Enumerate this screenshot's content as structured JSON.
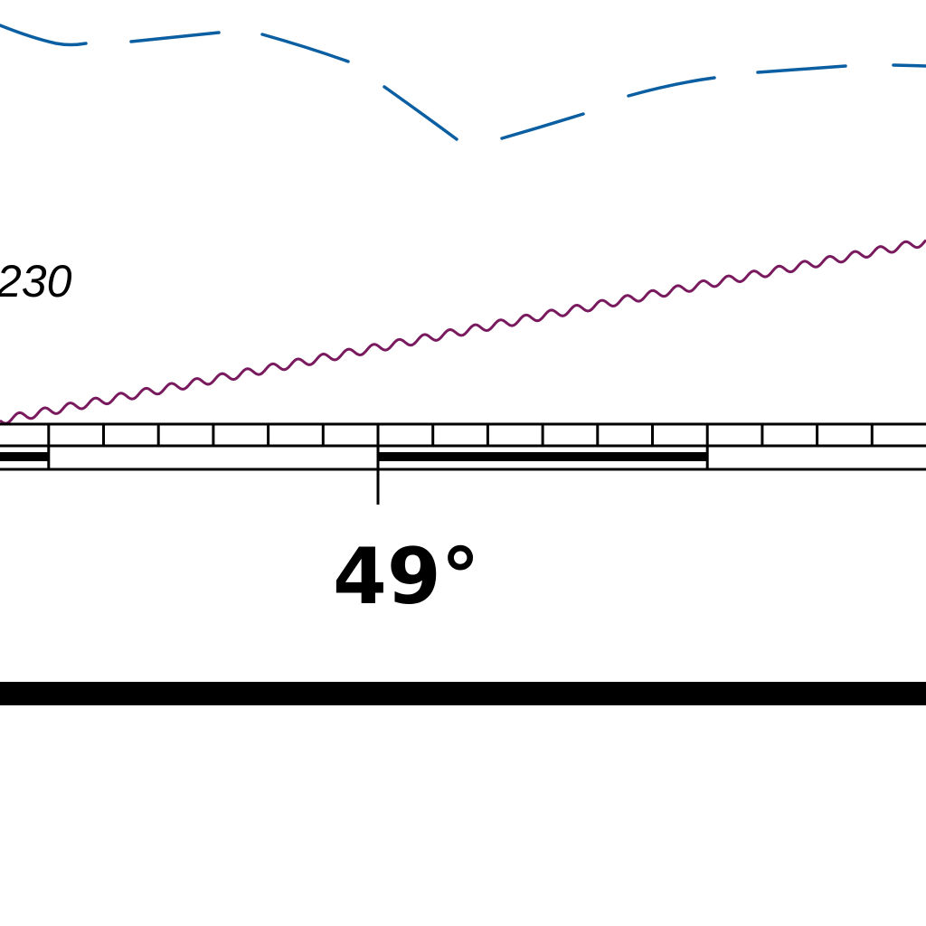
{
  "map": {
    "depth_label": "230",
    "latitude_label": "49°",
    "colors": {
      "background": "#ffffff",
      "depth_contour": "#0a5ea2",
      "wavy_boundary": "#7a1a5e",
      "graticule": "#000000"
    },
    "features": [
      {
        "type": "dashed depth contour",
        "color": "blue"
      },
      {
        "type": "wavy limit line",
        "color": "purple"
      },
      {
        "type": "latitude scale border",
        "graduated": true
      },
      {
        "type": "map neatline"
      }
    ]
  }
}
